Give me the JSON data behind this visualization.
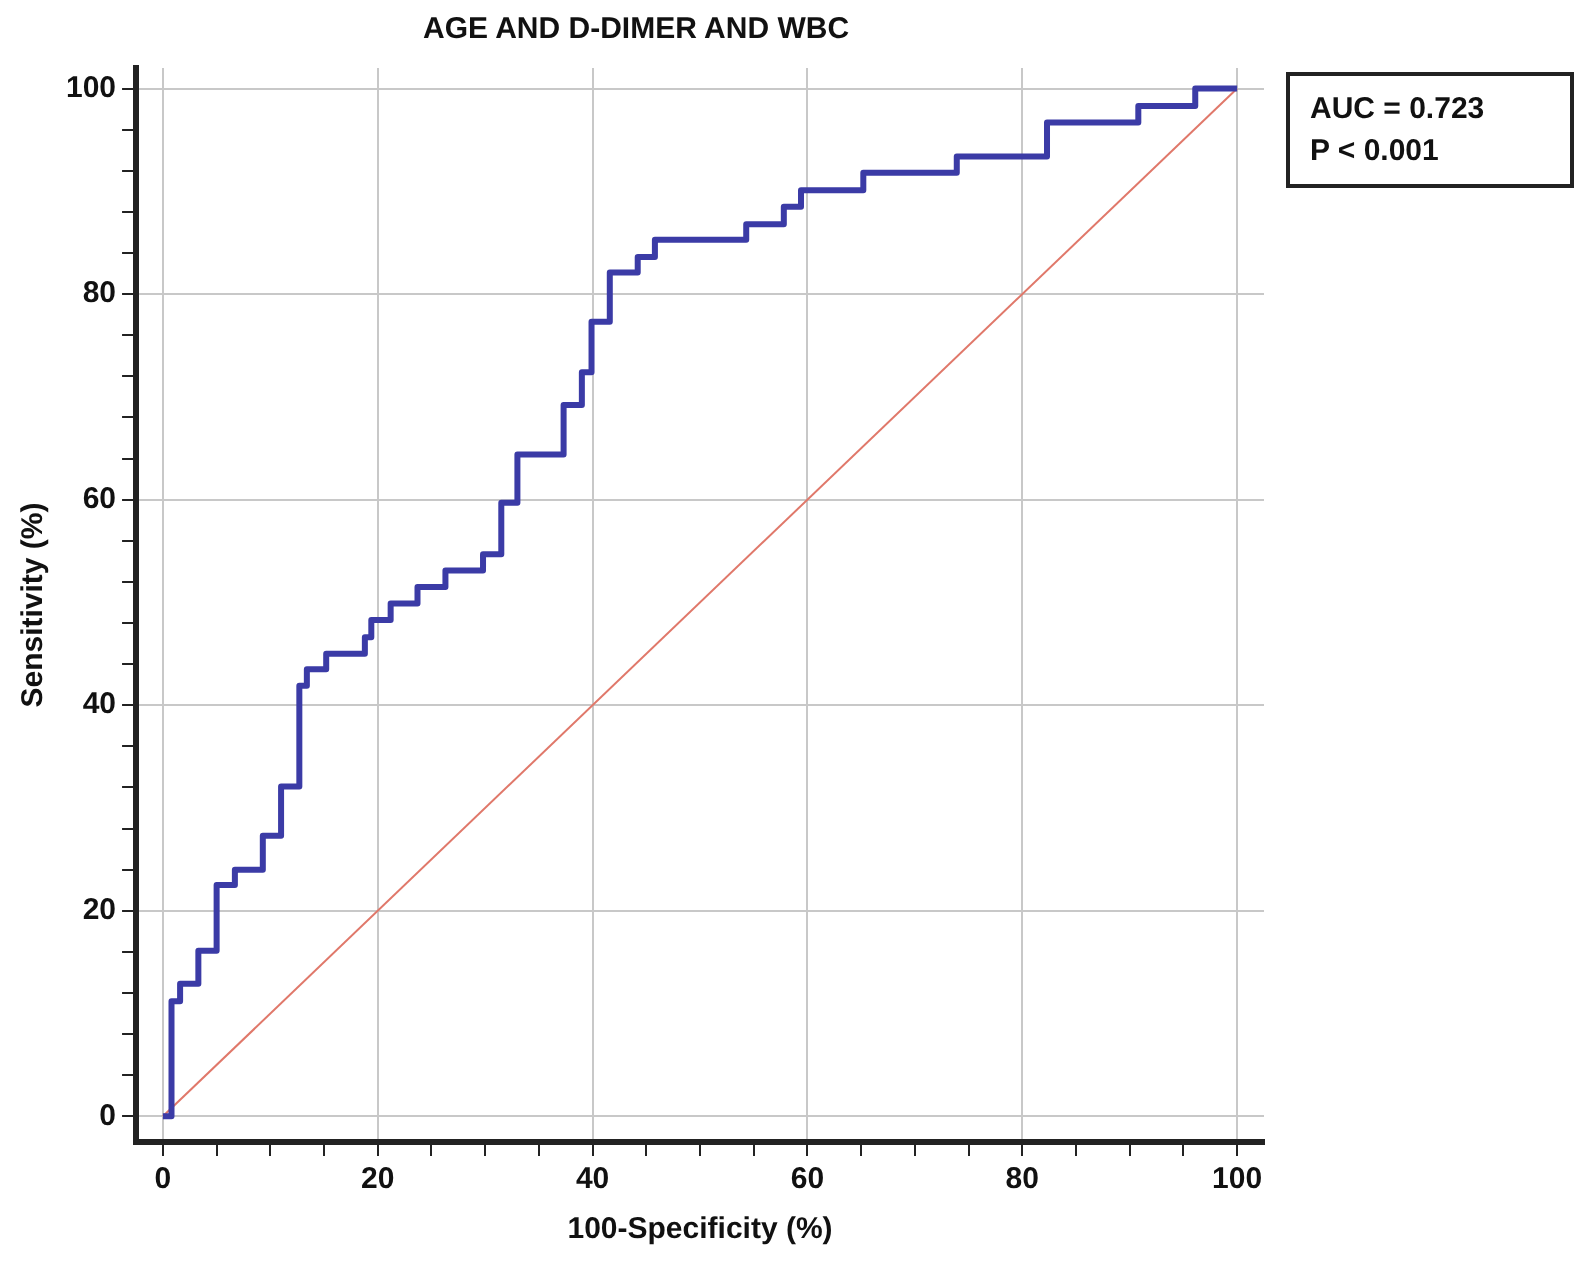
{
  "chart_data": {
    "type": "step",
    "title": "AGE AND D-DIMER AND WBC",
    "xlabel": "100-Specificity (%)",
    "ylabel": "Sensitivity (%)",
    "annotations": [
      "AUC = 0.723",
      "P < 0.001"
    ],
    "series": [
      {
        "color": "#3b3ba6",
        "x": [
          0,
          0.8,
          1.6,
          3.3,
          5.0,
          6.7,
          9.3,
          11.0,
          12.7,
          13.4,
          15.2,
          18.8,
          19.4,
          21.2,
          23.7,
          26.3,
          29.8,
          31.5,
          33.0,
          37.3,
          39.0,
          39.9,
          41.6,
          44.2,
          45.8,
          54.3,
          57.8,
          59.4,
          65.2,
          73.9,
          82.3,
          90.8,
          96.1,
          100
        ],
        "values": [
          0,
          11.2,
          12.9,
          16.1,
          22.5,
          24.0,
          27.3,
          32.1,
          41.9,
          43.5,
          45.0,
          46.6,
          48.3,
          49.9,
          51.5,
          53.1,
          54.7,
          59.7,
          64.4,
          69.2,
          72.4,
          77.3,
          82.1,
          83.6,
          85.3,
          86.8,
          88.5,
          90.1,
          91.8,
          93.4,
          96.7,
          98.3,
          100,
          100
        ]
      },
      {
        "type": "line",
        "color": "#e0786a",
        "x": [
          0,
          100
        ],
        "values": [
          0,
          100
        ]
      }
    ],
    "xlim": [
      -2.5,
      102.5
    ],
    "ylim": [
      -2.5,
      102
    ],
    "xticks": [
      0,
      {
        "value": 5,
        "label": null
      },
      {
        "value": 10,
        "label": null
      },
      {
        "value": 15,
        "label": null
      },
      20,
      {
        "value": 25,
        "label": null
      },
      {
        "value": 30,
        "label": null
      },
      {
        "value": 35,
        "label": null
      },
      40,
      {
        "value": 45,
        "label": null
      },
      {
        "value": 50,
        "label": null
      },
      {
        "value": 55,
        "label": null
      },
      60,
      {
        "value": 65,
        "label": null
      },
      {
        "value": 70,
        "label": null
      },
      {
        "value": 75,
        "label": null
      },
      80,
      {
        "value": 85,
        "label": null
      },
      {
        "value": 90,
        "label": null
      },
      {
        "value": 95,
        "label": null
      },
      100
    ],
    "yticks": [
      0,
      {
        "value": 4,
        "label": null
      },
      {
        "value": 8,
        "label": null
      },
      {
        "value": 12,
        "label": null
      },
      {
        "value": 16,
        "label": null
      },
      20,
      {
        "value": 24,
        "label": null
      },
      {
        "value": 28,
        "label": null
      },
      {
        "value": 32,
        "label": null
      },
      {
        "value": 36,
        "label": null
      },
      40,
      {
        "value": 44,
        "label": null
      },
      {
        "value": 48,
        "label": null
      },
      {
        "value": 52,
        "label": null
      },
      {
        "value": 56,
        "label": null
      },
      60,
      {
        "value": 64,
        "label": null
      },
      {
        "value": 68,
        "label": null
      },
      {
        "value": 72,
        "label": null
      },
      {
        "value": 76,
        "label": null
      },
      80,
      {
        "value": 84,
        "label": null
      },
      {
        "value": 88,
        "label": null
      },
      {
        "value": 92,
        "label": null
      },
      {
        "value": 96,
        "label": null
      },
      100
    ],
    "grid": true,
    "marker": "none",
    "line_style": "solid"
  }
}
